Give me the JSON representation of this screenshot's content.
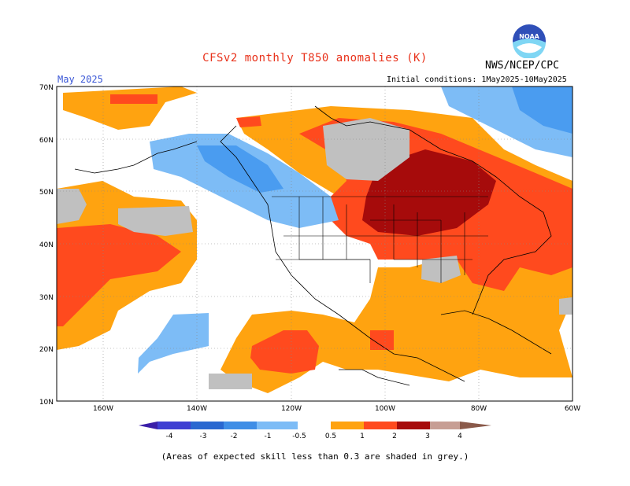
{
  "header": {
    "title": "CFSv2 monthly T850 anomalies (K)",
    "org": "NWS/NCEP/CPC",
    "month": "May 2025",
    "initial_conditions": "Initial conditions: 1May2025-10May2025",
    "logo_text": "NOAA"
  },
  "map": {
    "lat_labels": [
      "70N",
      "60N",
      "50N",
      "40N",
      "30N",
      "20N",
      "10N"
    ],
    "lon_labels": [
      "160W",
      "140W",
      "120W",
      "100W",
      "80W",
      "60W"
    ]
  },
  "colorbar": {
    "labels": [
      "-4",
      "-3",
      "-2",
      "-1",
      "-0.5",
      "0.5",
      "1",
      "2",
      "3",
      "4"
    ],
    "colors": [
      "#3b1fa8",
      "#3f3fd2",
      "#2f7fd8",
      "#4a9cf0",
      "#7dbcf6",
      "#ffffff",
      "#ffa310",
      "#ff4a1e",
      "#d8290f",
      "#a60b0b",
      "#c79e94",
      "#8a5a4a"
    ]
  },
  "note": "(Areas of expected skill less than 0.3 are shaded in grey.)",
  "colors": {
    "orange": "#ffa310",
    "red": "#ff4a1e",
    "dark_red": "#a60b0b",
    "light_blue": "#7dbcf6",
    "blue": "#4a9cf0",
    "grey": "#c0c0c0",
    "title": "#e8311a"
  }
}
